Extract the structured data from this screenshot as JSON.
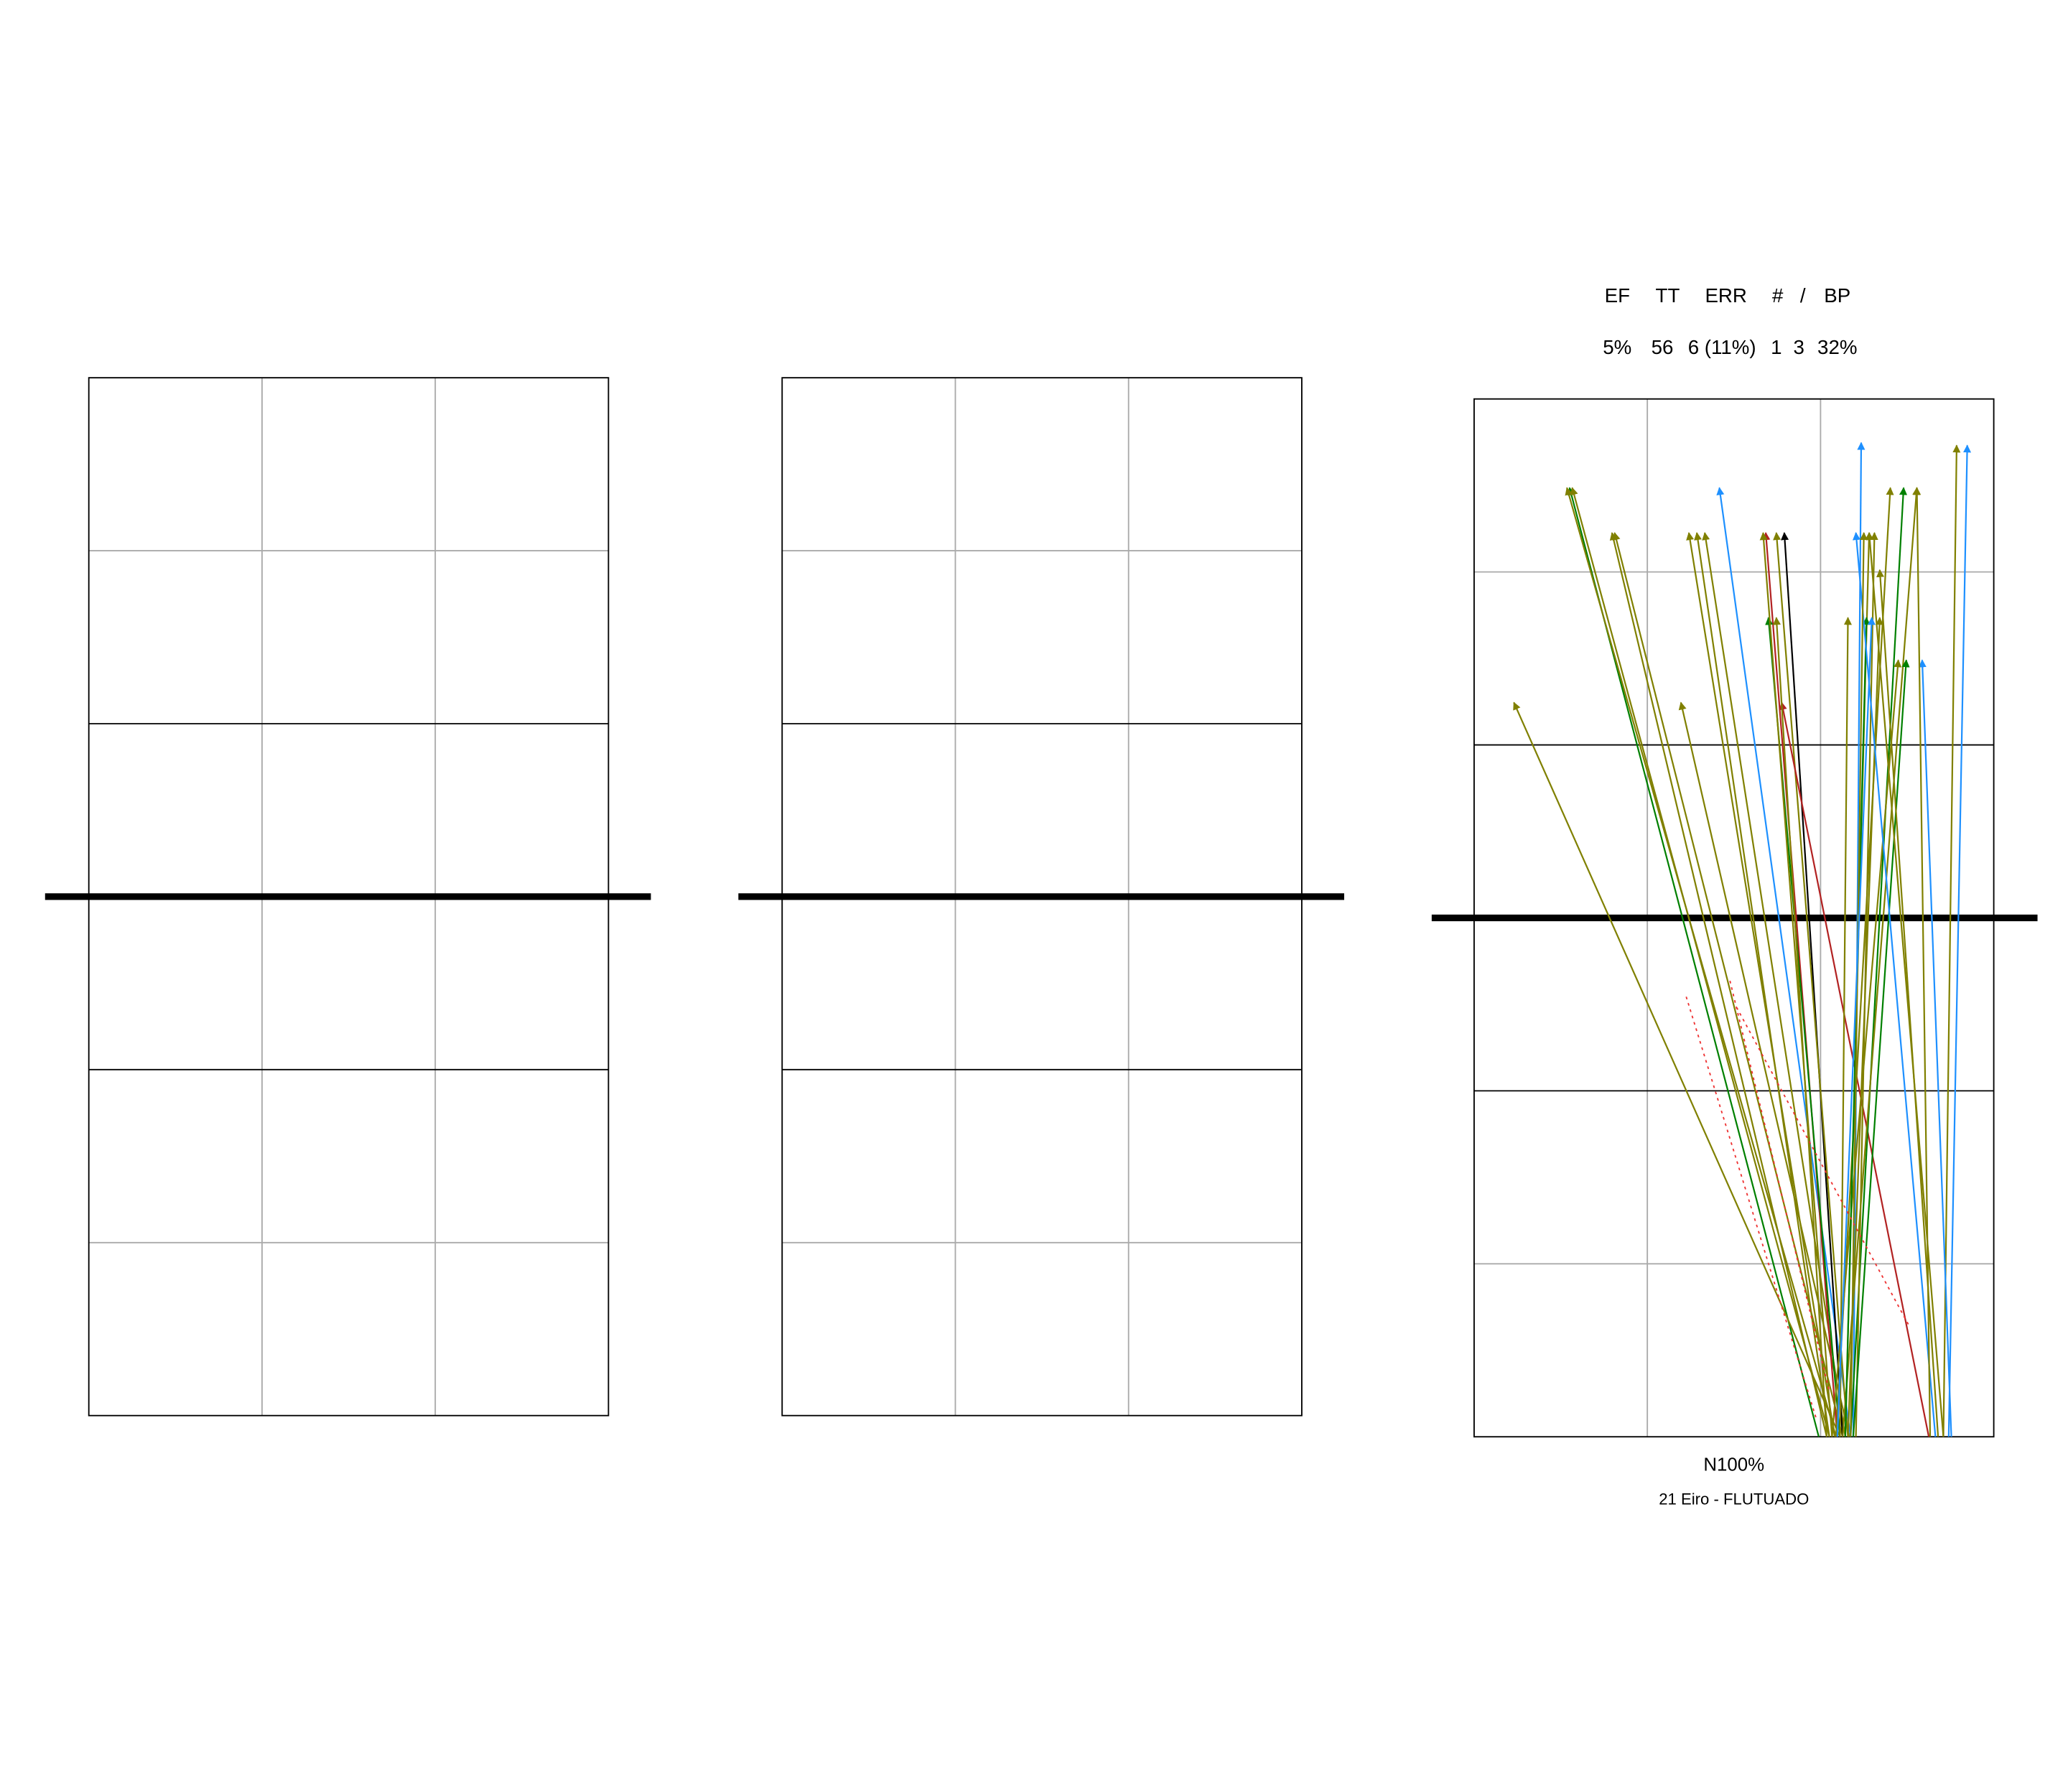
{
  "stats": {
    "headers": [
      "EF",
      "TT",
      "ERR",
      "#",
      "/",
      "BP"
    ],
    "values": [
      "5%",
      "56",
      "6 (11%)",
      "1",
      "3",
      "32%"
    ]
  },
  "footer": {
    "zone": "N100%",
    "player": "21 Eiro  - FLUTUADO"
  }
}
